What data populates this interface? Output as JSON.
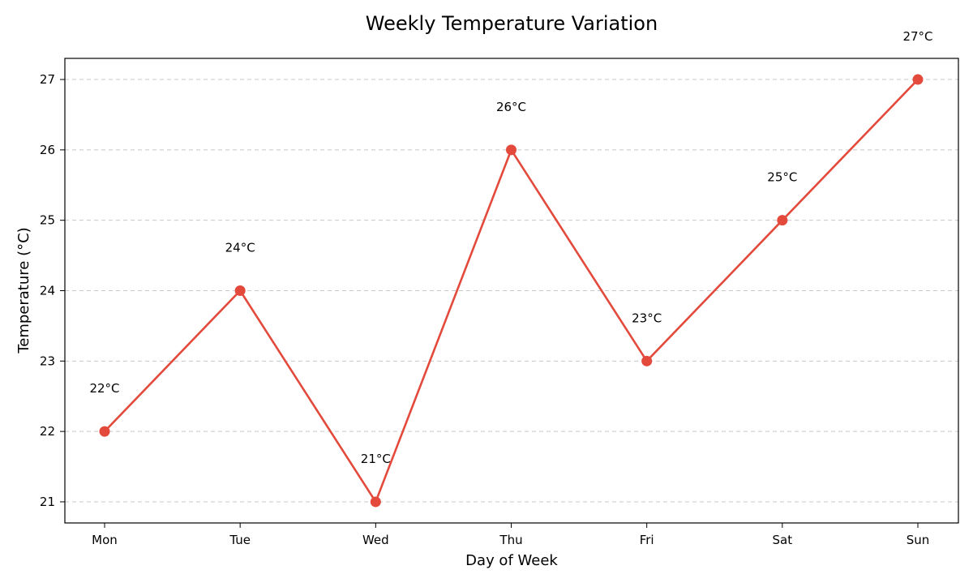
{
  "chart_data": {
    "type": "line",
    "title": "Weekly Temperature Variation",
    "xlabel": "Day of Week",
    "ylabel": "Temperature (°C)",
    "categories": [
      "Mon",
      "Tue",
      "Wed",
      "Thu",
      "Fri",
      "Sat",
      "Sun"
    ],
    "series": [
      {
        "values": [
          22,
          24,
          21,
          26,
          23,
          25,
          27
        ],
        "color": "#e34a3c"
      }
    ],
    "data_labels": [
      "22°C",
      "24°C",
      "21°C",
      "26°C",
      "23°C",
      "25°C",
      "27°C"
    ],
    "yticks": [
      21,
      22,
      23,
      24,
      25,
      26,
      27
    ],
    "ytick_labels": [
      "21",
      "22",
      "23",
      "24",
      "25",
      "26",
      "27"
    ],
    "ylim": [
      20.7,
      27.3
    ],
    "grid": "y-dashed",
    "legend": "none"
  }
}
